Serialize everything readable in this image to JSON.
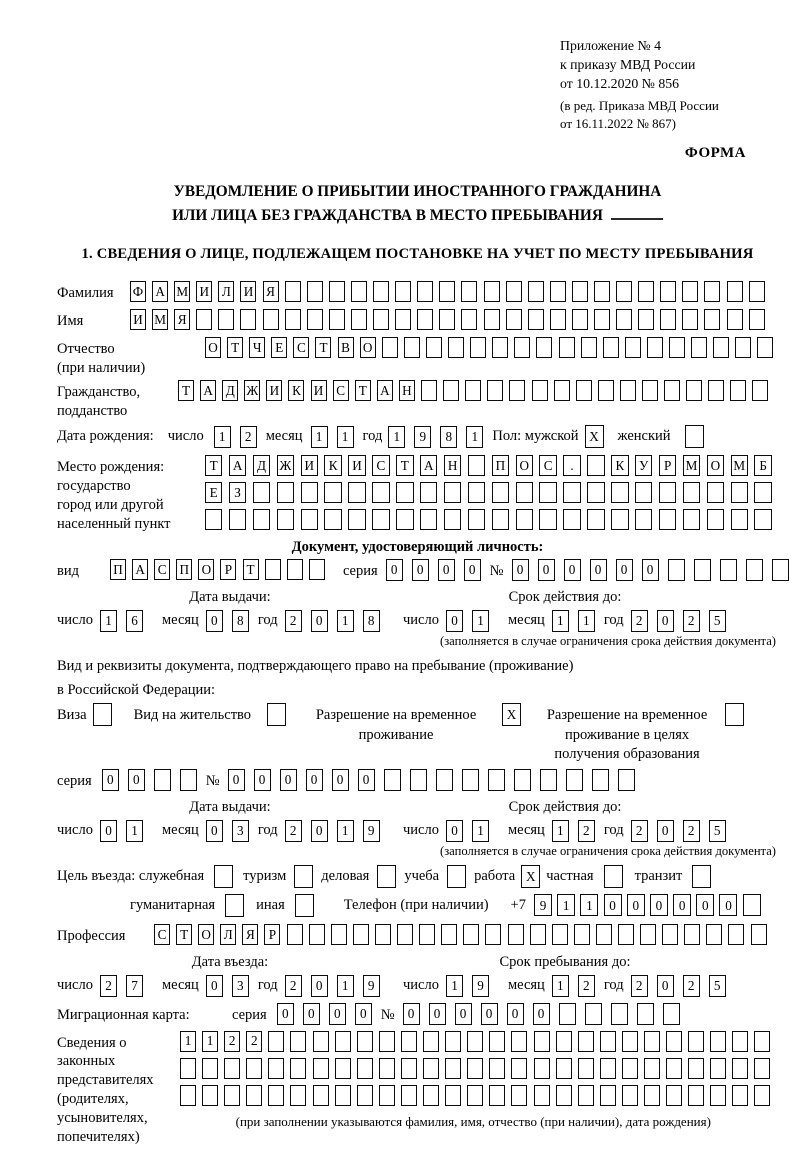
{
  "header": {
    "ref_lines": [
      "Приложение № 4",
      "к приказу МВД России",
      "от 10.12.2020 № 856",
      "(в ред. Приказа МВД России",
      "от 16.11.2022 № 867)"
    ],
    "forma": "ФОРМА"
  },
  "title": {
    "line1": "УВЕДОМЛЕНИЕ О ПРИБЫТИИ ИНОСТРАННОГО ГРАЖДАНИНА",
    "line2": "ИЛИ ЛИЦА БЕЗ ГРАЖДАНСТВА В МЕСТО ПРЕБЫВАНИЯ"
  },
  "section1": {
    "heading": "1. СВЕДЕНИЯ О ЛИЦЕ, ПОДЛЕЖАЩЕМ ПОСТАНОВКЕ НА УЧЕТ ПО МЕСТУ ПРЕБЫВАНИЯ"
  },
  "labels": {
    "surname": "Фамилия",
    "name": "Имя",
    "patronymic": "Отчество",
    "patronymic_note": "(при наличии)",
    "citizenship_1": "Гражданство,",
    "citizenship_2": "подданство",
    "birth_date": "Дата рождения:",
    "day": "число",
    "month": "месяц",
    "year": "год",
    "sex_male": "Пол: мужской",
    "sex_female": "женский",
    "birth_place_1": "Место рождения:",
    "birth_place_2": "государство",
    "birth_place_3": "город или другой",
    "birth_place_4": "населенный пункт",
    "id_doc_heading": "Документ, удостоверяющий личность:",
    "doc_kind": "вид",
    "series": "серия",
    "number": "№",
    "issue_date": "Дата выдачи:",
    "valid_until": "Срок действия до:",
    "valid_note": "(заполняется в случае ограничения срока действия документа)",
    "res_doc_1": "Вид и реквизиты документа, подтверждающего право на пребывание (проживание)",
    "res_doc_2": "в Российской Федерации:",
    "visa": "Виза",
    "residence_permit": "Вид на жительство",
    "temp_residence": "Разрешение на временное проживание",
    "temp_residence_edu": "Разрешение на временное проживание в целях получения образования",
    "purpose": "Цель въезда: служебная",
    "tourism": "туризм",
    "business": "деловая",
    "study": "учеба",
    "work": "работа",
    "private": "частная",
    "transit": "транзит",
    "humanitarian": "гуманитарная",
    "other": "иная",
    "phone": "Телефон (при наличии)",
    "phone_prefix": "+7",
    "profession": "Профессия",
    "entry_date": "Дата въезда:",
    "stay_until": "Срок пребывания до:",
    "migration_card": "Миграционная карта:",
    "legal_reps_1": "Сведения о",
    "legal_reps_2": "законных",
    "legal_reps_3": "представителях",
    "legal_reps_4": "(родителях,",
    "legal_reps_5": "усыновителях,",
    "legal_reps_6": "попечителях)",
    "legal_note": "(при заполнении указываются фамилия, имя, отчество (при наличии), дата рождения)"
  },
  "values": {
    "surname": {
      "text": "ФАМИЛИЯ",
      "len": 29
    },
    "name": {
      "text": "ИМЯ",
      "len": 29
    },
    "patronymic": {
      "text": "ОТЧЕСТВО",
      "len": 26
    },
    "citizenship": {
      "text": "ТАДЖИКИСТАН",
      "len": 27
    },
    "birth": {
      "day": "12",
      "month": "11",
      "year": "1981"
    },
    "sex": {
      "male": "X",
      "female": " "
    },
    "birth_place": [
      {
        "text": "ТАДЖИКИСТАН ПОС. КУРМОМБ",
        "len": 24
      },
      {
        "text": "ЕЗ",
        "len": 24
      },
      {
        "text": "",
        "len": 24
      }
    ],
    "id_doc": {
      "kind": {
        "text": "ПАСПОРТ",
        "len": 10
      },
      "series": "0000",
      "number": {
        "text": "000000",
        "len": 11
      },
      "issue": {
        "day": "16",
        "month": "08",
        "year": "2018"
      },
      "valid": {
        "day": "01",
        "month": "11",
        "year": "2025"
      }
    },
    "res_doc": {
      "checks": {
        "visa": " ",
        "residence_permit": " ",
        "temp_residence": "X",
        "temp_residence_edu": " "
      },
      "series": {
        "text": "00",
        "len": 4
      },
      "number": {
        "text": "000000",
        "len": 16
      },
      "issue": {
        "day": "01",
        "month": "03",
        "year": "2019"
      },
      "valid": {
        "day": "01",
        "month": "12",
        "year": "2025"
      }
    },
    "purpose": {
      "official": " ",
      "tourism": " ",
      "business": " ",
      "study": " ",
      "work": "X",
      "private": " ",
      "transit": " ",
      "humanitarian": " ",
      "other": " "
    },
    "phone": {
      "text": "911000000",
      "len": 10
    },
    "profession": {
      "text": "СТОЛЯР",
      "len": 28
    },
    "entry": {
      "day": "27",
      "month": "03",
      "year": "2019"
    },
    "stay": {
      "day": "19",
      "month": "12",
      "year": "2025"
    },
    "migration_card": {
      "series": "0000",
      "number": {
        "text": "000000",
        "len": 11
      }
    },
    "legal_reps": [
      {
        "text": "1122",
        "len": 27
      },
      {
        "text": "",
        "len": 27
      },
      {
        "text": "",
        "len": 27
      }
    ]
  }
}
